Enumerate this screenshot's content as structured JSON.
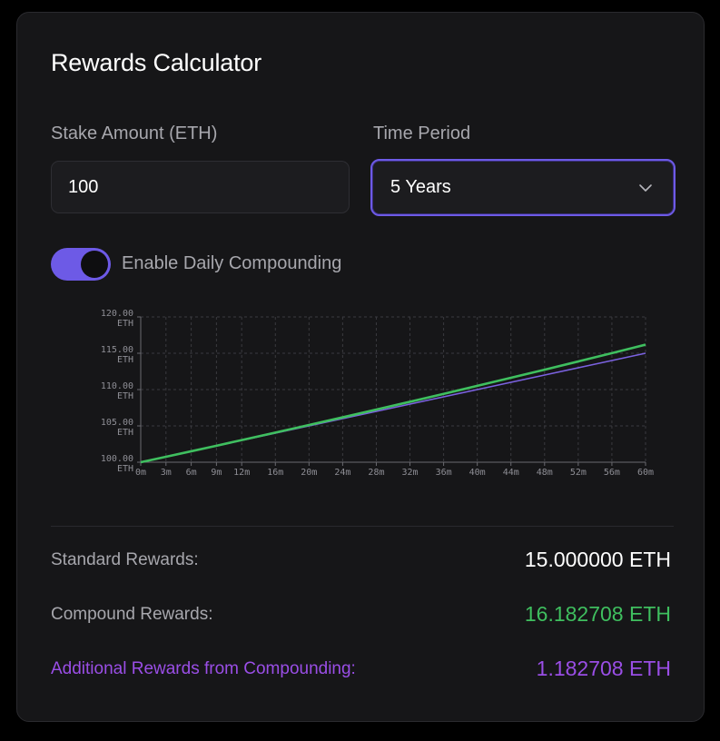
{
  "title": "Rewards Calculator",
  "stake": {
    "label": "Stake Amount (ETH)",
    "value": "100"
  },
  "period": {
    "label": "Time Period",
    "selected": "5 Years"
  },
  "compounding": {
    "label": "Enable Daily Compounding",
    "enabled": true
  },
  "colors": {
    "accent": "#6d5ae6",
    "compound_line": "#3fbf5f",
    "standard_line": "#7b62e0",
    "additional": "#9a4ee6"
  },
  "results": {
    "standard_label": "Standard Rewards:",
    "standard_value": "15.000000 ETH",
    "compound_label": "Compound Rewards:",
    "compound_value": "16.182708 ETH",
    "additional_label": "Additional Rewards from Compounding:",
    "additional_value": "1.182708 ETH"
  },
  "chart_data": {
    "type": "line",
    "x": [
      "0m",
      "3m",
      "6m",
      "9m",
      "12m",
      "16m",
      "20m",
      "24m",
      "28m",
      "32m",
      "36m",
      "40m",
      "44m",
      "48m",
      "52m",
      "56m",
      "60m"
    ],
    "x_months": [
      0,
      3,
      6,
      9,
      12,
      16,
      20,
      24,
      28,
      32,
      36,
      40,
      44,
      48,
      52,
      56,
      60
    ],
    "ylim": [
      100,
      120
    ],
    "yticks": [
      "100.00",
      "105.00",
      "110.00",
      "115.00",
      "120.00"
    ],
    "yunit": "ETH",
    "grid": true,
    "series": [
      {
        "values": [
          100,
          100.75,
          101.5,
          102.25,
          103,
          104,
          105,
          106,
          107,
          108,
          109,
          110,
          111,
          112,
          113,
          114,
          115
        ]
      },
      {
        "values": [
          100,
          100.75,
          101.51,
          102.27,
          103.05,
          104.08,
          105.13,
          106.18,
          107.25,
          108.32,
          109.41,
          110.51,
          111.62,
          112.74,
          113.87,
          115.01,
          116.18
        ]
      }
    ]
  }
}
